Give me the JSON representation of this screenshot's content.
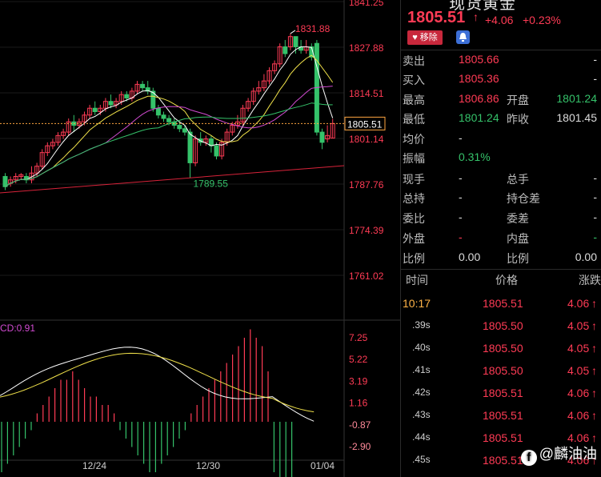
{
  "quote": {
    "title_partial": "现货黄金",
    "price": "1805.51",
    "change": "+4.06",
    "change_pct": "+0.23%",
    "remove_label": "移除",
    "rows": [
      {
        "l1": "卖出",
        "v1": "1805.66",
        "c1": "red",
        "l2": "",
        "v2": "-",
        "c2": "white"
      },
      {
        "l1": "买入",
        "v1": "1805.36",
        "c1": "red",
        "l2": "",
        "v2": "-",
        "c2": "white"
      },
      {
        "l1": "最高",
        "v1": "1806.86",
        "c1": "red",
        "l2": "开盘",
        "v2": "1801.24",
        "c2": "green"
      },
      {
        "l1": "最低",
        "v1": "1801.24",
        "c1": "green",
        "l2": "昨收",
        "v2": "1801.45",
        "c2": "white"
      },
      {
        "l1": "均价",
        "v1": "-",
        "c1": "white",
        "l2": "",
        "v2": "",
        "c2": "white"
      },
      {
        "l1": "振幅",
        "v1": "0.31%",
        "c1": "green",
        "l2": "",
        "v2": "",
        "c2": "white"
      },
      {
        "l1": "现手",
        "v1": "-",
        "c1": "white",
        "l2": "总手",
        "v2": "-",
        "c2": "white"
      },
      {
        "l1": "总持",
        "v1": "-",
        "c1": "white",
        "l2": "持仓差",
        "v2": "-",
        "c2": "white"
      },
      {
        "l1": "委比",
        "v1": "-",
        "c1": "white",
        "l2": "委差",
        "v2": "-",
        "c2": "white"
      },
      {
        "l1": "外盘",
        "v1": "-",
        "c1": "red",
        "l2": "内盘",
        "v2": "-",
        "c2": "green"
      },
      {
        "l1": "比例",
        "v1": "0.00",
        "c1": "white",
        "l2": "比例",
        "v2": "0.00",
        "c2": "white"
      }
    ],
    "trade_headers": {
      "time": "时间",
      "price": "价格",
      "change": "涨跌"
    },
    "trades": [
      {
        "time": "10:17",
        "price": "1805.51",
        "change": "4.06"
      },
      {
        "time": ".39s",
        "price": "1805.50",
        "change": "4.05"
      },
      {
        "time": ".40s",
        "price": "1805.50",
        "change": "4.05"
      },
      {
        "time": ".41s",
        "price": "1805.50",
        "change": "4.05"
      },
      {
        "time": ".42s",
        "price": "1805.51",
        "change": "4.06"
      },
      {
        "time": ".43s",
        "price": "1805.51",
        "change": "4.06"
      },
      {
        "time": ".44s",
        "price": "1805.51",
        "change": "4.06"
      },
      {
        "time": ".45s",
        "price": "1805.51",
        "change": "4.06"
      }
    ],
    "watermark": "@麟油油"
  },
  "colors": {
    "up": "#ff3b55",
    "down": "#35c26a",
    "bg": "#000000",
    "accent": "#ffa640"
  },
  "chart": {
    "price_axis": [
      "1841.25",
      "1827.88",
      "1814.51",
      "1801.14",
      "1787.76",
      "1774.39",
      "1761.02"
    ],
    "macd_axis": [
      "7.25",
      "5.22",
      "3.19",
      "1.16",
      "-0.87",
      "-2.90"
    ],
    "macd_label": "CD:0.91",
    "date_labels": [
      "12/24",
      "12/30",
      "01/04"
    ],
    "high_label": "1831.88",
    "low_label": "1789.55",
    "current_label": "1805.51"
  }
}
